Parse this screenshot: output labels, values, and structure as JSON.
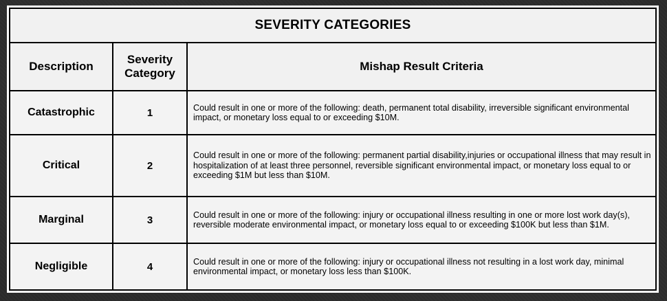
{
  "table": {
    "title": "SEVERITY CATEGORIES",
    "headers": {
      "description": "Description",
      "category_line1": "Severity",
      "category_line2": "Category",
      "criteria": "Mishap Result Criteria"
    },
    "rows": [
      {
        "description": "Catastrophic",
        "category": "1",
        "criteria": "Could result in one or more of the following:  death, permanent total disability, irreversible significant environmental impact, or monetary loss equal to or exceeding $10M."
      },
      {
        "description": "Critical",
        "category": "2",
        "criteria": "Could result in one or more of the following:  permanent partial disability,injuries or occupational illness that may result in hospitalization of at least three personnel, reversible significant environmental impact, or monetary loss equal to or exceeding $1M but less than $10M."
      },
      {
        "description": "Marginal",
        "category": "3",
        "criteria": "Could result in one or more of the following:  injury or occupational illness resulting in one or more lost work day(s), reversible moderate environmental impact, or monetary loss equal to or exceeding $100K but less than $1M."
      },
      {
        "description": "Negligible",
        "category": "4",
        "criteria": "Could result in one or more of the following:  injury or occupational illness not resulting in a lost work day, minimal environmental impact, or monetary loss less than $100K."
      }
    ]
  }
}
